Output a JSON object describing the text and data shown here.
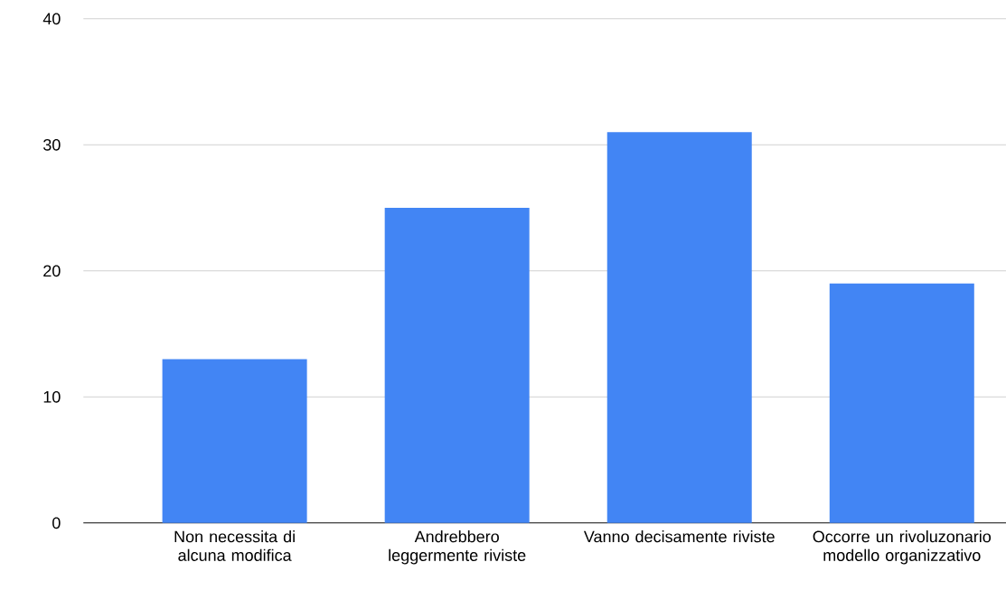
{
  "chart_data": {
    "type": "bar",
    "categories": [
      "Non necessita di alcuna modifica",
      "Andrebbero leggermente riviste",
      "Vanno decisamente riviste",
      "Occorre un rivoluzonario modello organizzativo"
    ],
    "values": [
      13,
      25,
      31,
      19
    ],
    "color": "#4285f4",
    "ylim": [
      0,
      40
    ],
    "yticks": [
      0,
      10,
      20,
      30,
      40
    ],
    "grid": "y"
  }
}
